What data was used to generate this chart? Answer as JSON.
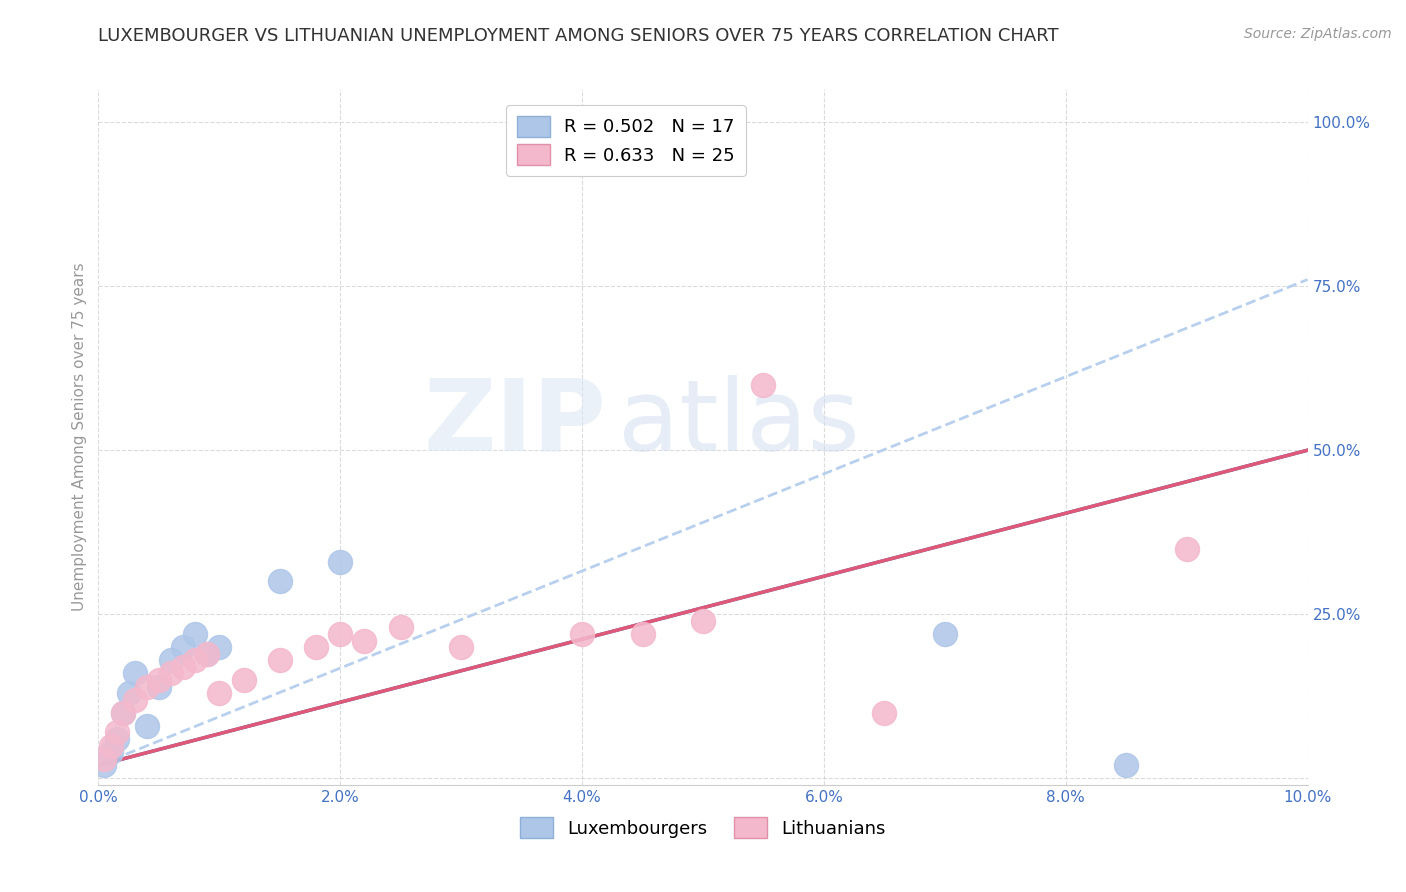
{
  "title": "LUXEMBOURGER VS LITHUANIAN UNEMPLOYMENT AMONG SENIORS OVER 75 YEARS CORRELATION CHART",
  "source": "Source: ZipAtlas.com",
  "ylabel": "Unemployment Among Seniors over 75 years",
  "legend_lux": "Luxembourgers",
  "legend_lit": "Lithuanians",
  "R_lux": 0.502,
  "N_lux": 17,
  "R_lit": 0.633,
  "N_lit": 25,
  "color_lux": "#aec6e8",
  "color_lit": "#f4b8cc",
  "line_color_lux": "#4472c4",
  "line_color_lit": "#e05878",
  "dashed_line_color": "#b8d0ee",
  "xlim": [
    0.0,
    0.1
  ],
  "ylim": [
    -0.01,
    1.05
  ],
  "xticks": [
    0.0,
    0.02,
    0.04,
    0.06,
    0.08,
    0.1
  ],
  "yticks_right": [
    0.25,
    0.5,
    0.75,
    1.0
  ],
  "lux_x": [
    0.0005,
    0.001,
    0.0015,
    0.002,
    0.0025,
    0.003,
    0.004,
    0.005,
    0.006,
    0.007,
    0.008,
    0.009,
    0.01,
    0.015,
    0.02,
    0.07,
    0.085
  ],
  "lux_y": [
    0.02,
    0.04,
    0.06,
    0.1,
    0.13,
    0.16,
    0.08,
    0.14,
    0.18,
    0.2,
    0.22,
    0.19,
    0.2,
    0.3,
    0.33,
    0.22,
    0.02
  ],
  "lit_x": [
    0.0005,
    0.001,
    0.0015,
    0.002,
    0.003,
    0.004,
    0.005,
    0.006,
    0.007,
    0.008,
    0.009,
    0.01,
    0.012,
    0.015,
    0.018,
    0.02,
    0.022,
    0.025,
    0.03,
    0.04,
    0.045,
    0.05,
    0.055,
    0.065,
    0.09
  ],
  "lit_y": [
    0.03,
    0.05,
    0.07,
    0.1,
    0.12,
    0.14,
    0.15,
    0.16,
    0.17,
    0.18,
    0.19,
    0.13,
    0.15,
    0.18,
    0.2,
    0.22,
    0.21,
    0.23,
    0.2,
    0.22,
    0.22,
    0.24,
    0.6,
    0.1,
    0.35
  ],
  "lux_regline": [
    0.02,
    0.5
  ],
  "lit_regline": [
    0.02,
    0.5
  ],
  "dashed_line": [
    0.02,
    0.76
  ],
  "background_color": "#ffffff",
  "grid_color": "#cccccc",
  "watermark_lux": "ZIP",
  "watermark_atlas": "atlas",
  "watermark_color": "#dde8f5",
  "title_fontsize": 13,
  "axis_label_fontsize": 11,
  "tick_fontsize": 11,
  "legend_fontsize": 13,
  "source_fontsize": 10
}
